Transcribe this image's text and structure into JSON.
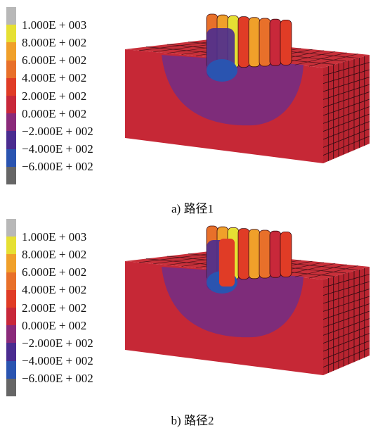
{
  "legend": {
    "labels": [
      "1.000E + 003",
      "8.000E + 002",
      "6.000E + 002",
      "4.000E + 002",
      "2.000E + 002",
      "0.000E + 002",
      "−2.000E + 002",
      "−4.000E + 002",
      "−6.000E + 002"
    ],
    "colors": [
      "#b8b8b8",
      "#e6e033",
      "#f0a02a",
      "#e8702a",
      "#e03c26",
      "#c8283a",
      "#8a2a7a",
      "#4a2c90",
      "#2a54b0",
      "#666666"
    ]
  },
  "panels": [
    {
      "id": "a",
      "caption": "a) 路径1"
    },
    {
      "id": "b",
      "caption": "b) 路径2"
    }
  ],
  "colors": {
    "block_front": "#c62836",
    "block_top": "#c8303a",
    "block_side": "#b82430",
    "heat_zone": "#7a2c7e",
    "grid_line": "#2a0a10"
  }
}
